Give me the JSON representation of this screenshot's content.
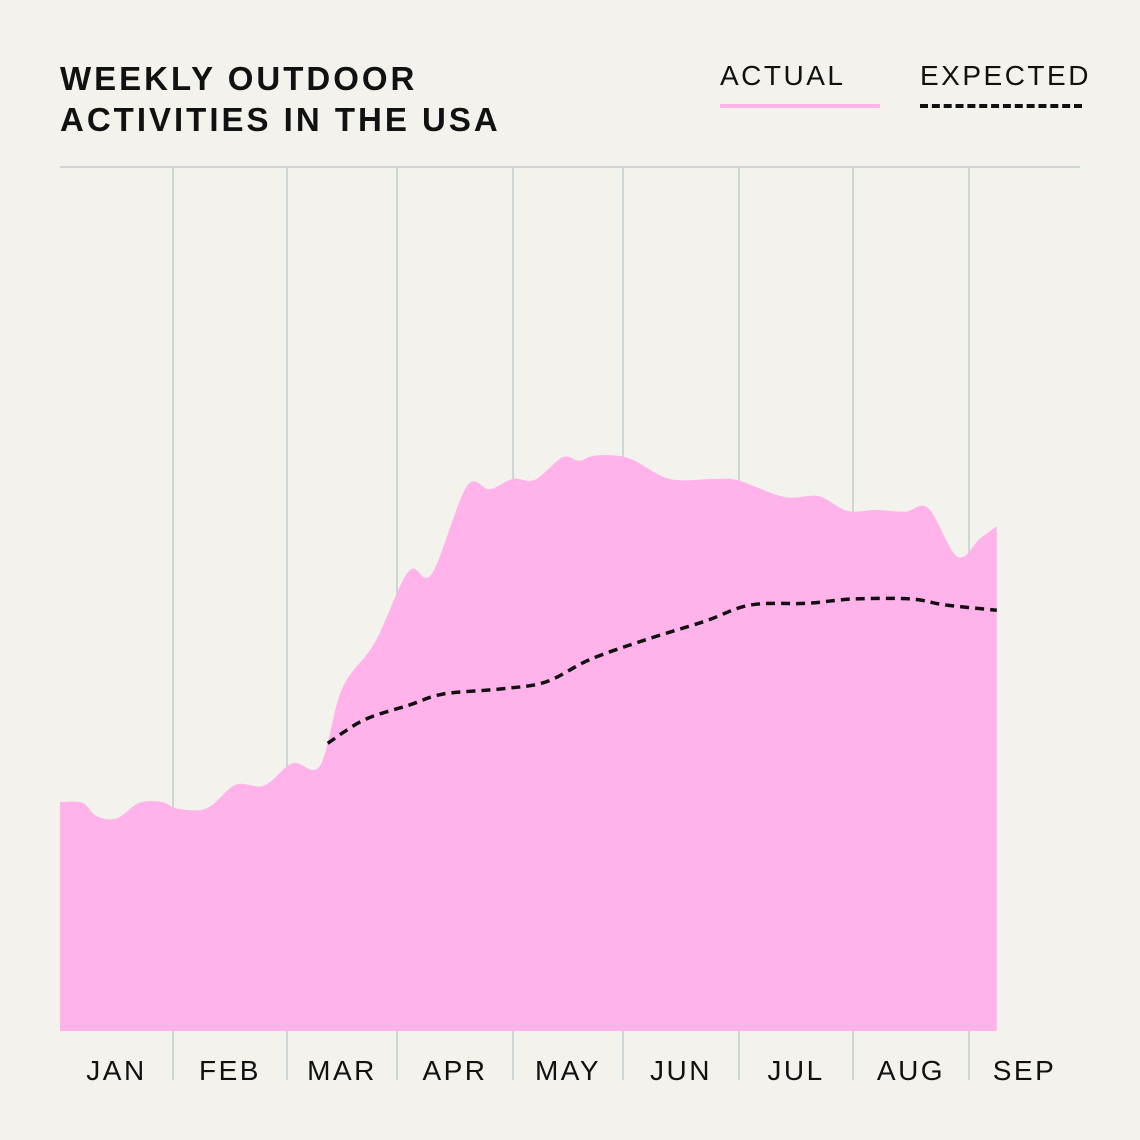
{
  "chart_data": {
    "type": "area",
    "title_lines": [
      "WEEKLY OUTDOOR",
      "ACTIVITIES IN THE USA"
    ],
    "categories": [
      "JAN",
      "FEB",
      "MAR",
      "APR",
      "MAY",
      "JUN",
      "JUL",
      "AUG",
      "SEP"
    ],
    "x_range": [
      0,
      9
    ],
    "ylim": [
      0,
      100
    ],
    "grid": "vertical",
    "legend": "top-right",
    "series": [
      {
        "name": "ACTUAL",
        "color": "#ffb3ea",
        "style": "area",
        "points": [
          [
            0.0,
            26.5
          ],
          [
            0.2,
            26.4
          ],
          [
            0.32,
            24.9
          ],
          [
            0.5,
            24.6
          ],
          [
            0.7,
            26.4
          ],
          [
            0.9,
            26.5
          ],
          [
            1.05,
            25.7
          ],
          [
            1.3,
            25.8
          ],
          [
            1.55,
            28.5
          ],
          [
            1.8,
            28.4
          ],
          [
            2.05,
            31.0
          ],
          [
            2.3,
            30.7
          ],
          [
            2.5,
            39.6
          ],
          [
            2.8,
            45.0
          ],
          [
            3.1,
            53.2
          ],
          [
            3.3,
            52.9
          ],
          [
            3.6,
            63.0
          ],
          [
            3.8,
            62.7
          ],
          [
            4.0,
            63.9
          ],
          [
            4.2,
            63.8
          ],
          [
            4.45,
            66.4
          ],
          [
            4.6,
            66.0
          ],
          [
            4.75,
            66.6
          ],
          [
            5.05,
            66.3
          ],
          [
            5.4,
            63.9
          ],
          [
            5.8,
            63.9
          ],
          [
            6.0,
            63.7
          ],
          [
            6.4,
            61.8
          ],
          [
            6.7,
            61.9
          ],
          [
            6.95,
            60.2
          ],
          [
            7.2,
            60.3
          ],
          [
            7.45,
            60.1
          ],
          [
            7.65,
            60.5
          ],
          [
            7.9,
            54.9
          ],
          [
            8.1,
            57.0
          ],
          [
            8.25,
            58.4
          ]
        ]
      },
      {
        "name": "EXPECTED",
        "color": "#111111",
        "style": "dashed",
        "points": [
          [
            2.37,
            33.3
          ],
          [
            2.7,
            36.0
          ],
          [
            3.1,
            37.7
          ],
          [
            3.4,
            39.0
          ],
          [
            3.9,
            39.6
          ],
          [
            4.3,
            40.4
          ],
          [
            4.7,
            43.0
          ],
          [
            5.2,
            45.3
          ],
          [
            5.7,
            47.4
          ],
          [
            6.1,
            49.3
          ],
          [
            6.6,
            49.5
          ],
          [
            7.0,
            50.0
          ],
          [
            7.5,
            50.0
          ],
          [
            7.8,
            49.3
          ],
          [
            8.25,
            48.7
          ]
        ]
      }
    ]
  }
}
